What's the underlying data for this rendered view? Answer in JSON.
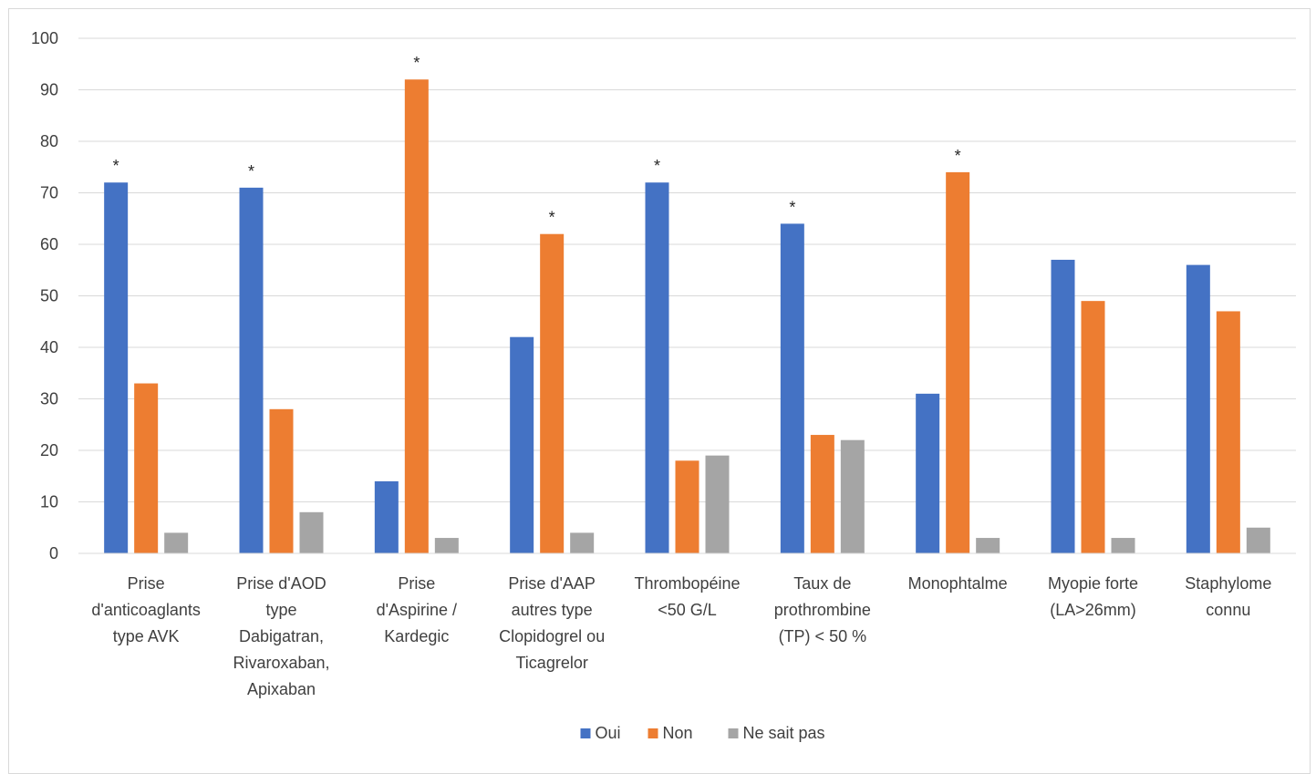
{
  "chart_data": {
    "type": "bar",
    "title": "",
    "xlabel": "",
    "ylabel": "",
    "ylim": [
      0,
      100
    ],
    "y_ticks": [
      0,
      10,
      20,
      30,
      40,
      50,
      60,
      70,
      80,
      90,
      100
    ],
    "grid": true,
    "legend_position": "bottom",
    "categories": [
      [
        "Prise",
        "d'anticoaglants",
        "type AVK"
      ],
      [
        "Prise d'AOD",
        "type",
        "Dabigatran,",
        "Rivaroxaban,",
        "Apixaban"
      ],
      [
        "Prise",
        "d'Aspirine /",
        "Kardegic"
      ],
      [
        "Prise d'AAP",
        "autres type",
        "Clopidogrel ou",
        "Ticagrelor"
      ],
      [
        "Thrombopéine",
        "<50 G/L"
      ],
      [
        "Taux de",
        "prothrombine",
        "(TP) < 50 %"
      ],
      [
        "Monophtalme"
      ],
      [
        "Myopie forte",
        "(LA>26mm)"
      ],
      [
        "Staphylome",
        "connu"
      ]
    ],
    "series": [
      {
        "name": "Oui",
        "color": "#4472C4",
        "values": [
          72,
          71,
          14,
          42,
          72,
          64,
          31,
          57,
          56
        ]
      },
      {
        "name": "Non",
        "color": "#ED7D31",
        "values": [
          33,
          28,
          92,
          62,
          18,
          23,
          74,
          49,
          47
        ]
      },
      {
        "name": "Ne sait pas",
        "color": "#A5A5A5",
        "values": [
          4,
          8,
          3,
          4,
          19,
          22,
          3,
          3,
          5
        ]
      }
    ],
    "annotations": [
      {
        "text": "*",
        "category_index": 0,
        "series_index": 0
      },
      {
        "text": "*",
        "category_index": 1,
        "series_index": 0
      },
      {
        "text": "*",
        "category_index": 2,
        "series_index": 1
      },
      {
        "text": "*",
        "category_index": 3,
        "series_index": 1
      },
      {
        "text": "*",
        "category_index": 4,
        "series_index": 0
      },
      {
        "text": "*",
        "category_index": 5,
        "series_index": 0
      },
      {
        "text": "*",
        "category_index": 6,
        "series_index": 1
      }
    ]
  }
}
